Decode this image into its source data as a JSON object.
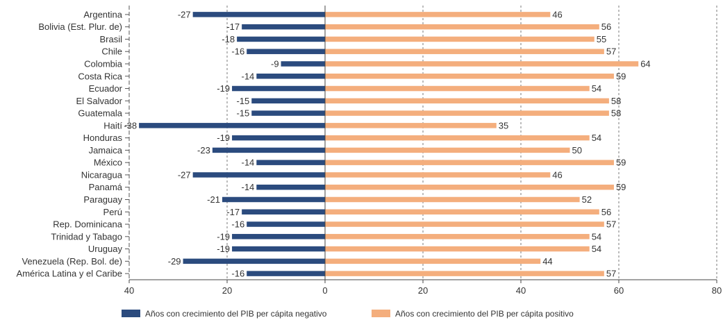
{
  "chart_data": {
    "type": "bar",
    "orientation": "horizontal",
    "categories": [
      "Argentina",
      "Bolivia (Est. Plur. de)",
      "Brasil",
      "Chile",
      "Colombia",
      "Costa Rica",
      "Ecuador",
      "El Salvador",
      "Guatemala",
      "Haití",
      "Honduras",
      "Jamaica",
      "México",
      "Nicaragua",
      "Panamá",
      "Paraguay",
      "Perú",
      "Rep. Dominicana",
      "Trinidad y Tabago",
      "Uruguay",
      "Venezuela (Rep. Bol. de)",
      "América Latina y el Caribe"
    ],
    "series": [
      {
        "name": "Años con crecimiento del PIB per cápita negativo",
        "color": "#2b4b7e",
        "values": [
          -27,
          -17,
          -18,
          -16,
          -9,
          -14,
          -19,
          -15,
          -15,
          -38,
          -19,
          -23,
          -14,
          -27,
          -14,
          -21,
          -17,
          -16,
          -19,
          -19,
          -29,
          -16
        ]
      },
      {
        "name": "Años con crecimiento del PIB per cápita positivo",
        "color": "#f4ae7d",
        "values": [
          46,
          56,
          55,
          57,
          64,
          59,
          54,
          58,
          58,
          35,
          54,
          50,
          59,
          46,
          59,
          52,
          56,
          57,
          54,
          54,
          44,
          57
        ]
      }
    ],
    "xlim": [
      -40,
      80
    ],
    "xticks": [
      -40,
      -20,
      0,
      20,
      40,
      60,
      80
    ],
    "xtick_labels": [
      "40",
      "20",
      "0",
      "20",
      "40",
      "60",
      "80"
    ],
    "grid": "vertical dashed",
    "legend_position": "bottom",
    "title": "",
    "xlabel": "",
    "ylabel": ""
  }
}
